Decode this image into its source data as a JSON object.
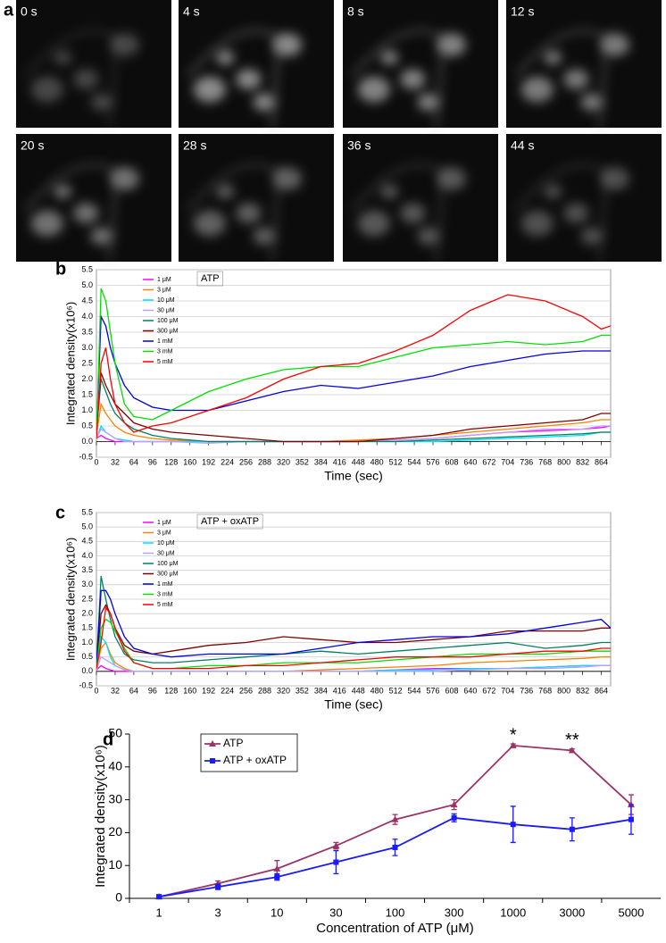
{
  "panel_a": {
    "label": "a",
    "frames": [
      "0 s",
      "4 s",
      "8 s",
      "12 s",
      "20 s",
      "28 s",
      "36 s",
      "44 s"
    ]
  },
  "chart_data": [
    {
      "type": "line",
      "panel_label": "b",
      "legend_title": "ATP",
      "xlabel": "Time (sec)",
      "ylabel": "Integrated density(x10⁶)",
      "grid": true,
      "x": [
        0,
        8,
        16,
        24,
        32,
        48,
        64,
        96,
        128,
        192,
        256,
        320,
        384,
        448,
        512,
        576,
        640,
        704,
        768,
        832,
        864,
        880
      ],
      "xlim": [
        0,
        880
      ],
      "xticks": [
        0,
        32,
        64,
        96,
        128,
        160,
        192,
        224,
        256,
        288,
        320,
        352,
        384,
        416,
        448,
        480,
        512,
        544,
        576,
        608,
        640,
        672,
        704,
        736,
        768,
        800,
        832,
        864
      ],
      "ylim": [
        -0.5,
        5.5
      ],
      "yticks": [
        -0.5,
        {
          "value": 0,
          "label": "0.0"
        },
        0.5,
        {
          "value": 1,
          "label": "1.0"
        },
        1.5,
        {
          "value": 2,
          "label": "2.0"
        },
        2.5,
        {
          "value": 3,
          "label": "3.0"
        },
        3.5,
        {
          "value": 4,
          "label": "4.0"
        },
        4.5,
        {
          "value": 5,
          "label": "5.0"
        },
        5.5
      ],
      "series": [
        {
          "name": "1 μM",
          "color": "#ff00ff",
          "values": [
            0.1,
            0.2,
            0.1,
            0.05,
            0,
            0,
            0,
            0,
            0,
            0,
            0,
            0,
            0,
            0,
            0.05,
            0.1,
            0.2,
            0.3,
            0.35,
            0.4,
            0.45,
            0.5
          ]
        },
        {
          "name": "3 μM",
          "color": "#ff8000",
          "values": [
            0.2,
            1.2,
            0.9,
            0.7,
            0.5,
            0.3,
            0.2,
            0.1,
            0.05,
            0,
            0,
            0,
            0,
            0.05,
            0.1,
            0.2,
            0.3,
            0.4,
            0.5,
            0.6,
            0.7,
            0.7
          ]
        },
        {
          "name": "10 μM",
          "color": "#00e0ff",
          "values": [
            0.1,
            0.5,
            0.3,
            0.2,
            0.1,
            0.05,
            0,
            0,
            0,
            0,
            0,
            0,
            0,
            0,
            0,
            0,
            0.05,
            0.1,
            0.15,
            0.2,
            0.3,
            0.3
          ]
        },
        {
          "name": "30 μM",
          "color": "#b8a0ff",
          "values": [
            0.1,
            0.4,
            0.3,
            0.2,
            0.1,
            0,
            0,
            0,
            0,
            -0.05,
            0,
            0,
            0,
            0,
            0.05,
            0.1,
            0.2,
            0.3,
            0.4,
            0.4,
            0.5,
            0.5
          ]
        },
        {
          "name": "100 μM",
          "color": "#008060",
          "values": [
            0.3,
            2.0,
            1.6,
            1.2,
            0.9,
            0.6,
            0.4,
            0.2,
            0.1,
            0,
            0,
            0,
            0,
            0,
            0,
            0.05,
            0.1,
            0.15,
            0.2,
            0.25,
            0.3,
            0.3
          ]
        },
        {
          "name": "300 μM",
          "color": "#800000",
          "values": [
            0.3,
            2.2,
            1.8,
            1.5,
            1.2,
            0.9,
            0.6,
            0.4,
            0.3,
            0.2,
            0.1,
            0,
            0,
            0,
            0.1,
            0.2,
            0.4,
            0.5,
            0.6,
            0.7,
            0.9,
            0.9
          ]
        },
        {
          "name": "1 mM",
          "color": "#0000e0",
          "values": [
            0.2,
            4.0,
            3.7,
            3.0,
            2.5,
            1.8,
            1.4,
            1.1,
            1.0,
            1.0,
            1.3,
            1.6,
            1.8,
            1.7,
            1.9,
            2.1,
            2.4,
            2.6,
            2.8,
            2.9,
            2.9,
            2.9
          ]
        },
        {
          "name": "3 mM",
          "color": "#00e000",
          "values": [
            0.1,
            4.9,
            4.5,
            3.5,
            2.5,
            1.2,
            0.8,
            0.7,
            1.0,
            1.6,
            2.0,
            2.3,
            2.4,
            2.4,
            2.7,
            3.0,
            3.1,
            3.2,
            3.1,
            3.2,
            3.4,
            3.4
          ]
        },
        {
          "name": "5 mM",
          "color": "#ff0000",
          "values": [
            0.1,
            2.5,
            3.0,
            2.0,
            1.2,
            0.6,
            0.3,
            0.5,
            0.6,
            1.0,
            1.4,
            2.0,
            2.4,
            2.5,
            2.9,
            3.4,
            4.2,
            4.7,
            4.5,
            4.0,
            3.6,
            3.7
          ]
        }
      ]
    },
    {
      "type": "line",
      "panel_label": "c",
      "legend_title": "ATP + oxATP",
      "xlabel": "Time (sec)",
      "ylabel": "Integrated density(x10⁶)",
      "grid": true,
      "x": [
        0,
        8,
        16,
        24,
        32,
        48,
        64,
        96,
        128,
        192,
        256,
        320,
        384,
        448,
        512,
        576,
        640,
        704,
        768,
        832,
        864,
        880
      ],
      "xlim": [
        0,
        880
      ],
      "xticks": [
        0,
        32,
        64,
        96,
        128,
        160,
        192,
        224,
        256,
        288,
        320,
        352,
        384,
        416,
        448,
        480,
        512,
        544,
        576,
        608,
        640,
        672,
        704,
        736,
        768,
        800,
        832,
        864
      ],
      "ylim": [
        -0.5,
        5.5
      ],
      "yticks": [
        -0.5,
        {
          "value": 0,
          "label": "0.0"
        },
        0.5,
        {
          "value": 1,
          "label": "1.0"
        },
        1.5,
        {
          "value": 2,
          "label": "2.0"
        },
        2.5,
        {
          "value": 3,
          "label": "3.0"
        },
        3.5,
        {
          "value": 4,
          "label": "4.0"
        },
        4.5,
        {
          "value": 5,
          "label": "5.0"
        },
        5.5
      ],
      "series": [
        {
          "name": "1 μM",
          "color": "#ff00ff",
          "values": [
            0.05,
            0.2,
            0.1,
            0.05,
            0,
            0,
            0,
            0,
            0,
            0,
            0,
            0,
            0,
            0,
            0.05,
            0.1,
            0.1,
            0.1,
            0.15,
            0.2,
            0.2,
            0.2
          ]
        },
        {
          "name": "3 μM",
          "color": "#ff8000",
          "values": [
            0.1,
            0.8,
            1.0,
            0.6,
            0.3,
            0.1,
            0,
            0,
            0,
            0,
            0,
            0,
            0.05,
            0.1,
            0.15,
            0.2,
            0.3,
            0.35,
            0.4,
            0.45,
            0.5,
            0.5
          ]
        },
        {
          "name": "10 μM",
          "color": "#00e0ff",
          "values": [
            0.1,
            1.2,
            1.0,
            0.5,
            0.2,
            0.05,
            0,
            0,
            0,
            0,
            0,
            0,
            0,
            0,
            0.05,
            0.05,
            0.1,
            0.1,
            0.15,
            0.2,
            0.2,
            0.2
          ]
        },
        {
          "name": "30 μM",
          "color": "#b8a0ff",
          "values": [
            0.05,
            0.5,
            0.4,
            0.3,
            0.2,
            0.05,
            0,
            0,
            0,
            0,
            0,
            0,
            0,
            0,
            0,
            0,
            0.05,
            0.1,
            0.1,
            0.15,
            0.2,
            0.2
          ]
        },
        {
          "name": "100 μM",
          "color": "#008060",
          "values": [
            0.2,
            3.3,
            2.5,
            1.8,
            1.2,
            0.6,
            0.4,
            0.3,
            0.3,
            0.4,
            0.5,
            0.6,
            0.7,
            0.6,
            0.7,
            0.8,
            0.9,
            1.0,
            0.8,
            0.9,
            1.0,
            1.0
          ]
        },
        {
          "name": "300 μM",
          "color": "#800000",
          "values": [
            0.2,
            2.0,
            2.3,
            2.0,
            1.5,
            0.9,
            0.7,
            0.6,
            0.7,
            0.9,
            1.0,
            1.2,
            1.1,
            1.0,
            1.0,
            1.1,
            1.2,
            1.4,
            1.4,
            1.4,
            1.5,
            1.5
          ]
        },
        {
          "name": "1 mM",
          "color": "#0000e0",
          "values": [
            0.2,
            2.8,
            2.8,
            2.5,
            2.0,
            1.2,
            0.8,
            0.6,
            0.5,
            0.6,
            0.6,
            0.6,
            0.8,
            1.0,
            1.1,
            1.2,
            1.2,
            1.3,
            1.5,
            1.7,
            1.8,
            1.5
          ]
        },
        {
          "name": "3 mM",
          "color": "#00e000",
          "values": [
            0.1,
            1.5,
            1.8,
            1.7,
            1.4,
            0.8,
            0.3,
            0.1,
            0.1,
            0.2,
            0.2,
            0.3,
            0.3,
            0.3,
            0.4,
            0.5,
            0.6,
            0.6,
            0.6,
            0.7,
            0.7,
            0.7
          ]
        },
        {
          "name": "5 mM",
          "color": "#ff0000",
          "values": [
            0.1,
            1.0,
            2.2,
            2.0,
            1.5,
            0.7,
            0.3,
            0.1,
            0.1,
            0.1,
            0.2,
            0.2,
            0.3,
            0.4,
            0.5,
            0.5,
            0.5,
            0.6,
            0.7,
            0.7,
            0.8,
            0.8
          ]
        }
      ]
    },
    {
      "type": "errorline",
      "panel_label": "d",
      "xlabel": "Concentration of ATP (μM)",
      "ylabel": "Integrated density(x10⁶)",
      "categories": [
        "1",
        "3",
        "10",
        "30",
        "100",
        "300",
        "1000",
        "3000",
        "5000"
      ],
      "ylim": [
        0,
        50
      ],
      "yticks": [
        0,
        10,
        20,
        30,
        40,
        50
      ],
      "legend_position": "upper left",
      "series": [
        {
          "name": "ATP",
          "color": "#993366",
          "marker": "triangle",
          "values": [
            0.5,
            4.5,
            9,
            16,
            24,
            28.5,
            46.5,
            45,
            28.5
          ],
          "errors": [
            0.3,
            0.8,
            2.5,
            1,
            1.5,
            1.5,
            0.5,
            0.5,
            3
          ]
        },
        {
          "name": "ATP + oxATP",
          "color": "#1a1aff",
          "marker": "square",
          "values": [
            0.5,
            3.5,
            6.5,
            11,
            15.5,
            24.5,
            22.5,
            21,
            24
          ],
          "errors": [
            0.3,
            0.8,
            1,
            3.5,
            2.5,
            1.2,
            5.5,
            3.5,
            4.5
          ]
        }
      ],
      "annotations": [
        {
          "text": "*",
          "category": "1000"
        },
        {
          "text": "**",
          "category": "3000"
        }
      ]
    }
  ]
}
